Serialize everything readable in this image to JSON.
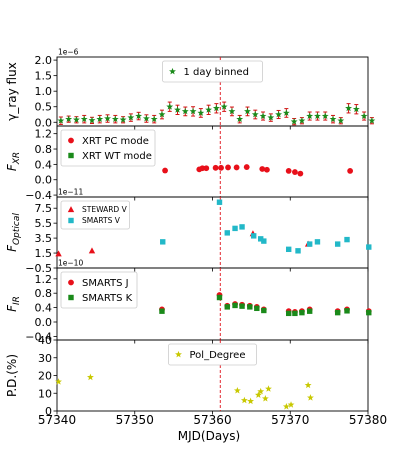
{
  "chart_data": {
    "type": "multi-panel",
    "xlabel": "MJD(Days)",
    "xlim": [
      57340,
      57380
    ],
    "xticks": [
      57340,
      57350,
      57360,
      57370,
      57380
    ],
    "vline_x": 57361,
    "vline_color": "#e0101a",
    "panels": [
      {
        "id": "gamma",
        "ylabel": "γ_ray flux",
        "exponent": "1e−6",
        "ylim": [
          -0.12,
          2.1
        ],
        "yticks": [
          0.0,
          0.5,
          1.0,
          1.5,
          2.0
        ],
        "ytick_labels": [
          "0.0",
          "0.5",
          "1.0",
          "1.5",
          "2.0"
        ],
        "series": [
          {
            "name": "1 day binned",
            "marker": "star",
            "color": "#1a8a1a",
            "errorbar_color": "#d21414",
            "x": [
              57340.5,
              57341.5,
              57342.5,
              57343.5,
              57344.5,
              57345.5,
              57346.5,
              57347.5,
              57348.5,
              57349.5,
              57350.5,
              57351.5,
              57352.5,
              57353.5,
              57354.5,
              57355.5,
              57356.5,
              57357.5,
              57358.5,
              57359.5,
              57360.5,
              57361.5,
              57362.5,
              57363.5,
              57364.5,
              57365.5,
              57366.5,
              57367.5,
              57368.5,
              57369.5,
              57370.5,
              57371.5,
              57372.5,
              57373.5,
              57374.5,
              57375.5,
              57376.5,
              57377.5,
              57378.5,
              57379.5,
              57380.5
            ],
            "y": [
              0.05,
              0.1,
              0.08,
              0.1,
              0.06,
              0.1,
              0.12,
              0.1,
              0.08,
              0.15,
              0.2,
              0.12,
              0.1,
              0.25,
              0.5,
              0.4,
              0.35,
              0.35,
              0.3,
              0.4,
              0.45,
              0.5,
              0.35,
              0.1,
              0.35,
              0.25,
              0.2,
              0.15,
              0.25,
              0.3,
              0.02,
              0.05,
              0.2,
              0.2,
              0.2,
              0.1,
              0.05,
              0.45,
              0.42,
              0.2,
              0.05
            ],
            "err": [
              0.12,
              0.1,
              0.1,
              0.12,
              0.1,
              0.12,
              0.12,
              0.12,
              0.1,
              0.12,
              0.12,
              0.12,
              0.12,
              0.14,
              0.15,
              0.15,
              0.14,
              0.15,
              0.14,
              0.15,
              0.15,
              0.15,
              0.14,
              0.12,
              0.14,
              0.14,
              0.13,
              0.12,
              0.13,
              0.14,
              0.1,
              0.1,
              0.13,
              0.13,
              0.13,
              0.12,
              0.1,
              0.15,
              0.15,
              0.13,
              0.1
            ]
          }
        ],
        "legend": "top-center"
      },
      {
        "id": "xrt",
        "ylabel": "F_XR",
        "ylim": [
          -0.45,
          1.4
        ],
        "yticks": [
          -0.4,
          0.0,
          0.4,
          0.8,
          1.2
        ],
        "ytick_labels": [
          "−0.4",
          "0.0",
          "0.4",
          "0.8",
          "1.2"
        ],
        "series": [
          {
            "name": "XRT PC mode",
            "marker": "circle",
            "color": "#e8101a",
            "x": [
              57353.9,
              57358.3,
              57358.7,
              57359.2,
              57360.4,
              57361.1,
              57362.0,
              57363.1,
              57364.4,
              57366.4,
              57367.0,
              57369.8,
              57370.6,
              57371.3,
              57377.7
            ],
            "y": [
              0.24,
              0.27,
              0.3,
              0.3,
              0.31,
              0.31,
              0.32,
              0.32,
              0.33,
              0.28,
              0.26,
              0.23,
              0.2,
              0.16,
              0.23
            ]
          },
          {
            "name": "XRT WT mode",
            "marker": "square",
            "color": "#1a8a1a",
            "x": [],
            "y": []
          }
        ],
        "legend": "top-left"
      },
      {
        "id": "optical",
        "ylabel": "F_Optical",
        "exponent": "1e−11",
        "ylim": [
          -0.5,
          9.0
        ],
        "yticks": [
          -0.5,
          1.5,
          3.5,
          5.5,
          7.5
        ],
        "ytick_labels": [
          "−0.5",
          "1.5",
          "3.5",
          "5.5",
          "7.5"
        ],
        "series": [
          {
            "name": "STEWARD V",
            "marker": "triangle",
            "color": "#e8101a",
            "x": [
              57340.2,
              57344.5,
              57365.2,
              57372.3
            ],
            "y": [
              1.4,
              1.8,
              4.1,
              2.7
            ]
          },
          {
            "name": "SMARTS V",
            "marker": "square",
            "color": "#22b8c8",
            "x": [
              57353.6,
              57360.9,
              57361.9,
              57362.9,
              57363.8,
              57365.3,
              57366.2,
              57366.6,
              57369.8,
              57371.0,
              57372.5,
              57373.5,
              57376.1,
              57377.3,
              57380.1
            ],
            "y": [
              3.0,
              8.3,
              4.2,
              4.8,
              5.0,
              3.8,
              3.4,
              3.1,
              2.0,
              1.8,
              2.7,
              3.0,
              2.7,
              3.3,
              2.3
            ]
          }
        ],
        "legend": "top-left"
      },
      {
        "id": "ir",
        "ylabel": "F_IR",
        "exponent": "1e−10",
        "ylim": [
          -0.5,
          1.5
        ],
        "yticks": [
          -0.4,
          0.0,
          0.4,
          0.8,
          1.2
        ],
        "ytick_labels": [
          "−0.4",
          "0.0",
          "0.4",
          "0.8",
          "1.2"
        ],
        "series": [
          {
            "name": "SMARTS J",
            "marker": "circle",
            "color": "#e8101a",
            "x": [
              57353.5,
              57360.9,
              57361.9,
              57362.9,
              57363.8,
              57364.8,
              57365.7,
              57366.6,
              57369.8,
              57370.6,
              57371.5,
              57372.5,
              57376.1,
              57377.3,
              57380.1
            ],
            "y": [
              0.35,
              0.75,
              0.45,
              0.5,
              0.48,
              0.45,
              0.42,
              0.35,
              0.3,
              0.28,
              0.3,
              0.35,
              0.3,
              0.35,
              0.3
            ]
          },
          {
            "name": "SMARTS K",
            "marker": "square",
            "color": "#1a8a1a",
            "x": [
              57353.5,
              57360.9,
              57361.9,
              57362.9,
              57363.8,
              57364.8,
              57365.7,
              57366.6,
              57369.8,
              57370.6,
              57371.5,
              57372.5,
              57376.1,
              57377.3,
              57380.1
            ],
            "y": [
              0.3,
              0.68,
              0.42,
              0.46,
              0.44,
              0.42,
              0.38,
              0.32,
              0.24,
              0.24,
              0.26,
              0.3,
              0.26,
              0.31,
              0.26
            ]
          }
        ],
        "legend": "top-left"
      },
      {
        "id": "pd",
        "ylabel": "P.D.(%)",
        "ylim": [
          0,
          40
        ],
        "yticks": [
          0,
          10,
          20,
          30,
          40
        ],
        "ytick_labels": [
          "0",
          "10",
          "20",
          "30",
          "40"
        ],
        "series": [
          {
            "name": "Pol_Degree",
            "marker": "star",
            "color": "#c8c800",
            "x": [
              57340.2,
              57344.3,
              57363.2,
              57364.1,
              57364.9,
              57365.9,
              57366.2,
              57366.8,
              57367.2,
              57369.5,
              57370.1,
              57372.3,
              57372.6
            ],
            "y": [
              16.5,
              19.0,
              11.5,
              6.0,
              5.5,
              9.0,
              11.0,
              7.0,
              12.5,
              2.5,
              3.5,
              14.5,
              7.5
            ]
          }
        ],
        "legend": "top-center"
      }
    ]
  }
}
